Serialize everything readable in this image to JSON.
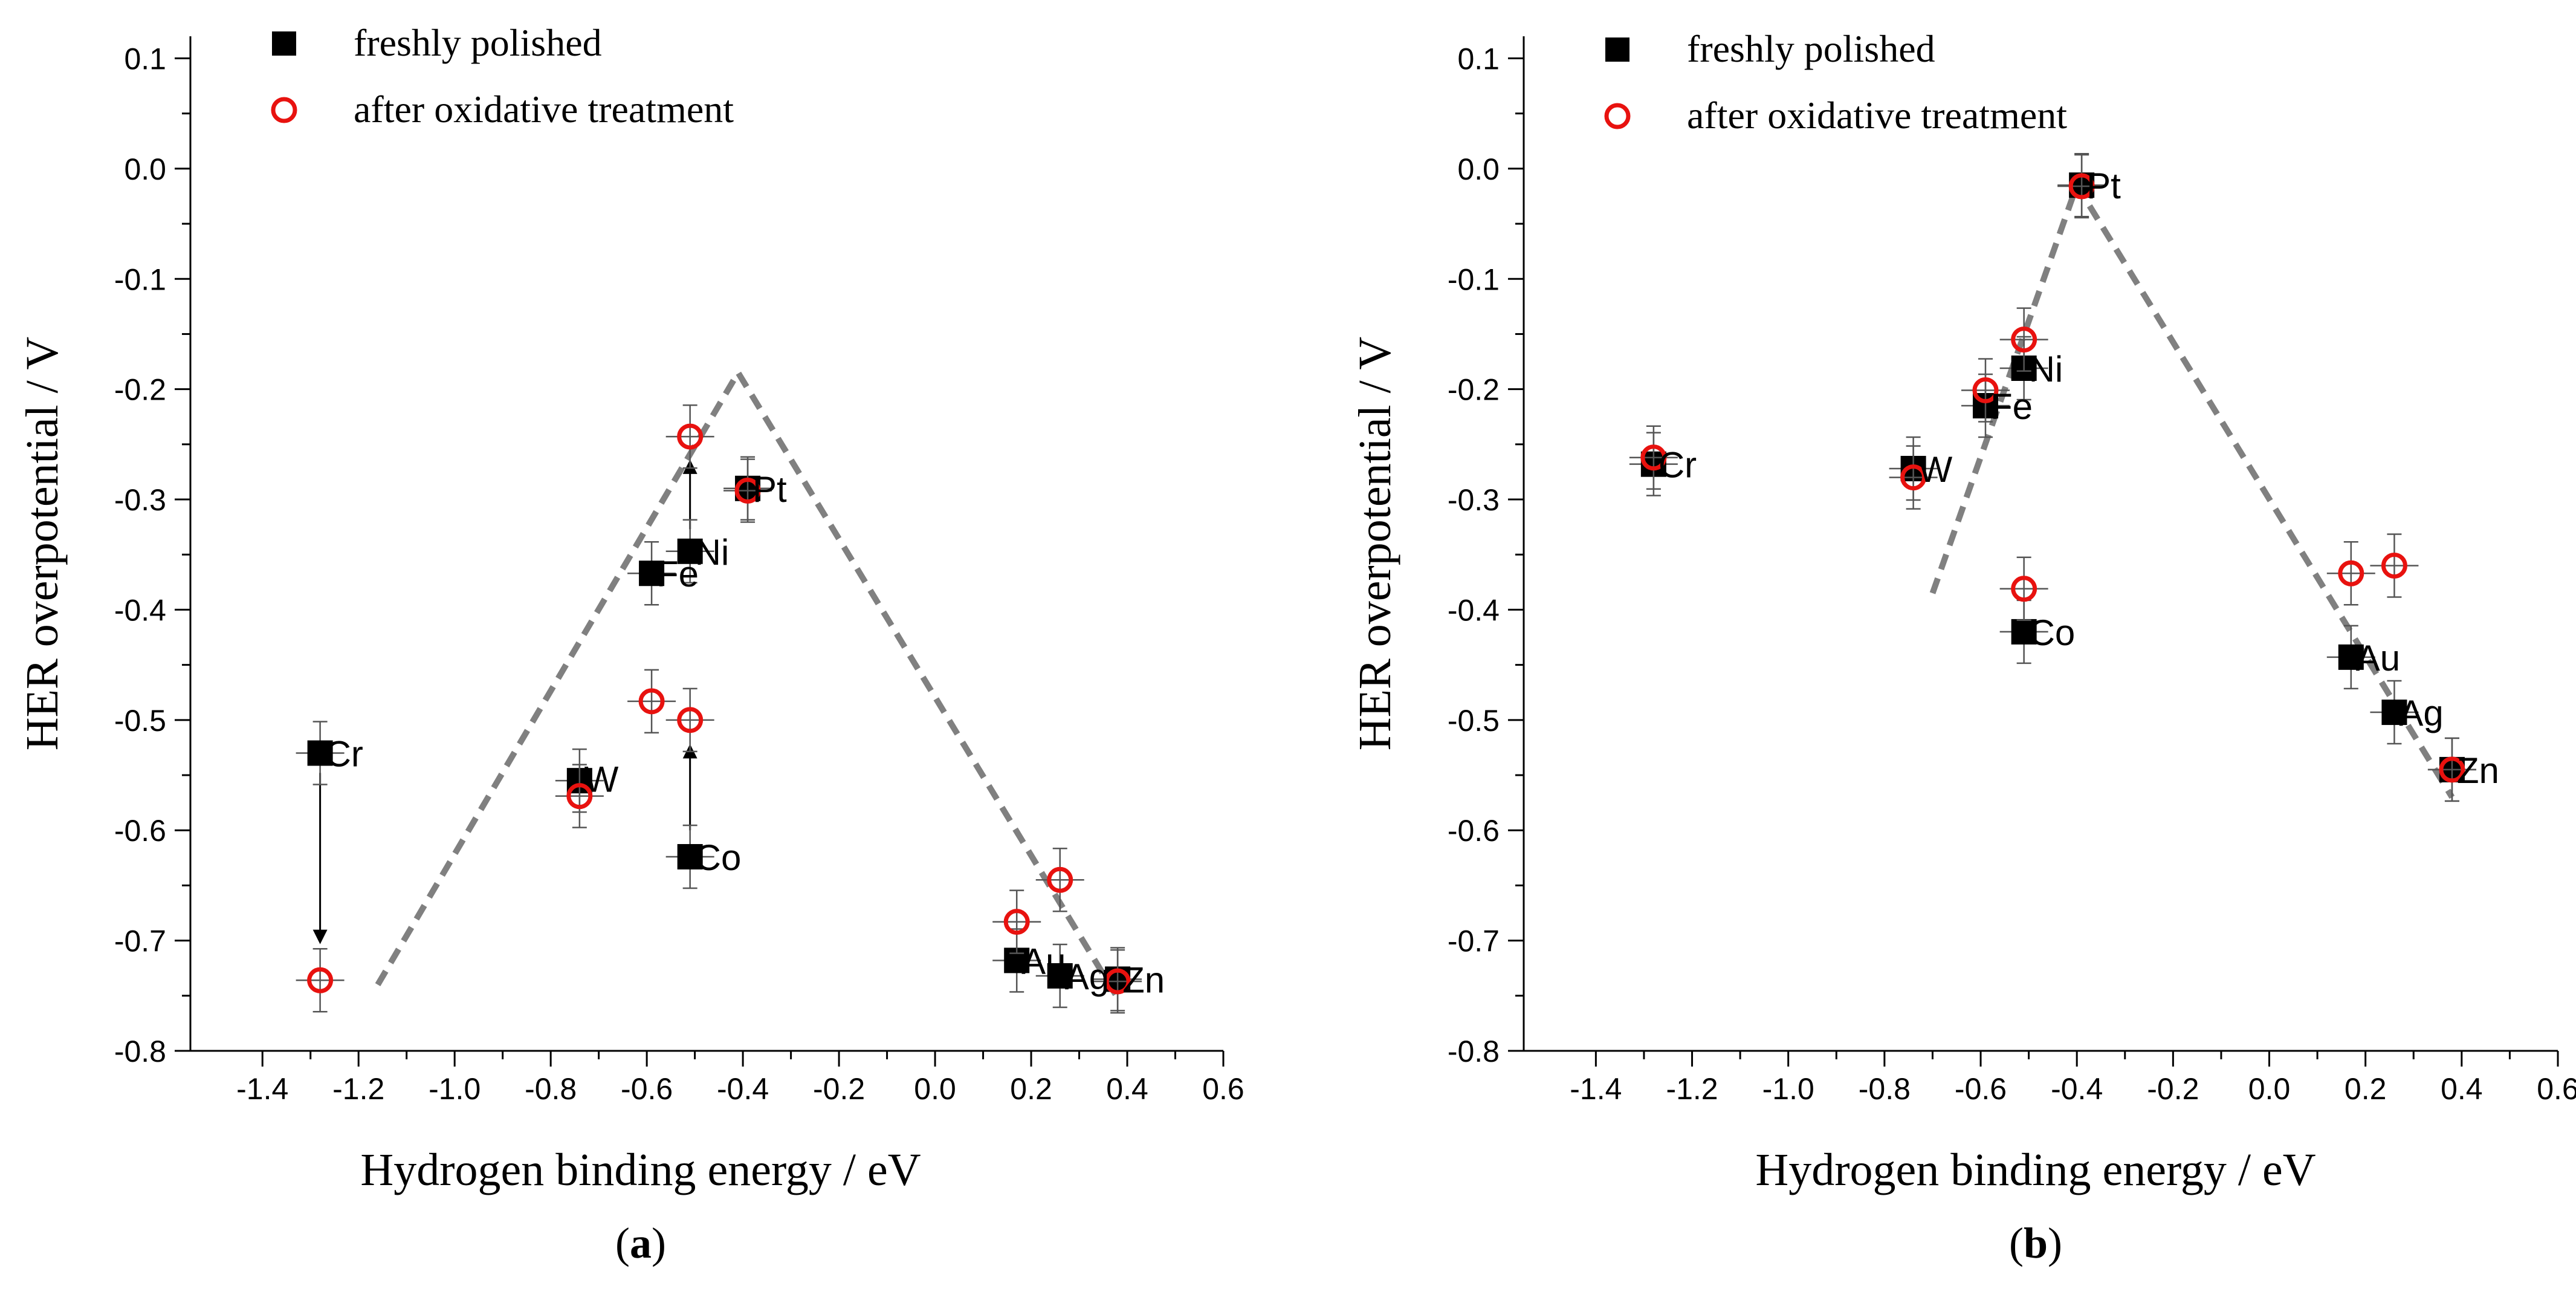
{
  "colors": {
    "fresh": "#000000",
    "oxidized": "#e8120f",
    "fit": "#808080",
    "errorbar": "#555555",
    "axis": "#000000"
  },
  "legend": {
    "fresh": "freshly polished",
    "oxidized": "after oxidative treatment"
  },
  "chart_data": [
    {
      "id": "a",
      "type": "scatter",
      "caption_letter": "a",
      "xlabel": "Hydrogen binding energy / eV",
      "ylabel": "HER overpotential / V",
      "xlim": [
        -1.55,
        0.6
      ],
      "ylim": [
        -0.8,
        0.12
      ],
      "xticks": [
        -1.4,
        -1.2,
        -1.0,
        -0.8,
        -0.6,
        -0.4,
        -0.2,
        0.0,
        0.2,
        0.4,
        0.6
      ],
      "xtick_labels": [
        "-1.4",
        "-1.2",
        "-1.0",
        "-0.8",
        "-0.6",
        "-0.4",
        "-0.2",
        "0.0",
        "0.2",
        "0.4",
        "0.6"
      ],
      "yticks": [
        -0.8,
        -0.7,
        -0.6,
        -0.5,
        -0.4,
        -0.3,
        -0.2,
        -0.1,
        0.0,
        0.1
      ],
      "ytick_labels": [
        "-0.8",
        "-0.7",
        "-0.6",
        "-0.5",
        "-0.4",
        "-0.3",
        "-0.2",
        "-0.1",
        "0.0",
        "0.1"
      ],
      "series": [
        {
          "name": "freshly polished",
          "key": "fresh",
          "points": [
            {
              "label": "Cr",
              "x": -1.28,
              "y": -0.53
            },
            {
              "label": "W",
              "x": -0.74,
              "y": -0.555
            },
            {
              "label": "Fe",
              "x": -0.59,
              "y": -0.367
            },
            {
              "label": "Ni",
              "x": -0.51,
              "y": -0.347
            },
            {
              "label": "Co",
              "x": -0.51,
              "y": -0.624
            },
            {
              "label": "Pt",
              "x": -0.39,
              "y": -0.29
            },
            {
              "label": "Au",
              "x": 0.17,
              "y": -0.718
            },
            {
              "label": "Ag",
              "x": 0.26,
              "y": -0.732
            },
            {
              "label": "Zn",
              "x": 0.38,
              "y": -0.735
            }
          ]
        },
        {
          "name": "after oxidative treatment",
          "key": "oxidized",
          "points": [
            {
              "label": "Cr",
              "x": -1.28,
              "y": -0.736
            },
            {
              "label": "W",
              "x": -0.74,
              "y": -0.569
            },
            {
              "label": "Fe",
              "x": -0.59,
              "y": -0.483
            },
            {
              "label": "Ni",
              "x": -0.51,
              "y": -0.243
            },
            {
              "label": "Co",
              "x": -0.51,
              "y": -0.5
            },
            {
              "label": "Pt",
              "x": -0.39,
              "y": -0.292
            },
            {
              "label": "Au",
              "x": 0.17,
              "y": -0.683
            },
            {
              "label": "Ag",
              "x": 0.26,
              "y": -0.645
            },
            {
              "label": "Zn",
              "x": 0.38,
              "y": -0.737
            }
          ]
        }
      ],
      "fit_line": [
        {
          "x": -1.16,
          "y": -0.74
        },
        {
          "x": -0.41,
          "y": -0.185
        },
        {
          "x": 0.38,
          "y": -0.752
        }
      ],
      "arrows": [
        {
          "from": {
            "x": -1.28,
            "y": -0.548
          },
          "to": {
            "x": -1.28,
            "y": -0.7
          }
        },
        {
          "from": {
            "x": -0.51,
            "y": -0.327
          },
          "to": {
            "x": -0.51,
            "y": -0.267
          }
        },
        {
          "from": {
            "x": -0.51,
            "y": -0.6
          },
          "to": {
            "x": -0.51,
            "y": -0.525
          }
        }
      ],
      "element_labels": [
        {
          "text": "Cr",
          "x": -1.27,
          "y": -0.53
        },
        {
          "text": "W",
          "x": -0.73,
          "y": -0.553
        },
        {
          "text": "Fe",
          "x": -0.58,
          "y": -0.367
        },
        {
          "text": "Ni",
          "x": -0.5,
          "y": -0.347
        },
        {
          "text": "Co",
          "x": -0.5,
          "y": -0.624
        },
        {
          "text": "Pt",
          "x": -0.38,
          "y": -0.29
        },
        {
          "text": "Au",
          "x": 0.18,
          "y": -0.718
        },
        {
          "text": "Ag",
          "x": 0.27,
          "y": -0.732
        },
        {
          "text": "Zn",
          "x": 0.39,
          "y": -0.735
        }
      ]
    },
    {
      "id": "b",
      "type": "scatter",
      "caption_letter": "b",
      "xlabel": "Hydrogen binding energy / eV",
      "ylabel": "HER overpotential / V",
      "xlim": [
        -1.55,
        0.6
      ],
      "ylim": [
        -0.8,
        0.12
      ],
      "xticks": [
        -1.4,
        -1.2,
        -1.0,
        -0.8,
        -0.6,
        -0.4,
        -0.2,
        0.0,
        0.2,
        0.4,
        0.6
      ],
      "xtick_labels": [
        "-1.4",
        "-1.2",
        "-1.0",
        "-0.8",
        "-0.6",
        "-0.4",
        "-0.2",
        "0.0",
        "0.2",
        "0.4",
        "0.6"
      ],
      "yticks": [
        -0.8,
        -0.7,
        -0.6,
        -0.5,
        -0.4,
        -0.3,
        -0.2,
        -0.1,
        0.0,
        0.1
      ],
      "ytick_labels": [
        "-0.8",
        "-0.7",
        "-0.6",
        "-0.5",
        "-0.4",
        "-0.3",
        "-0.2",
        "-0.1",
        "0.0",
        "0.1"
      ],
      "series": [
        {
          "name": "freshly polished",
          "key": "fresh",
          "points": [
            {
              "label": "Cr",
              "x": -1.28,
              "y": -0.268
            },
            {
              "label": "W",
              "x": -0.74,
              "y": -0.272
            },
            {
              "label": "Fe",
              "x": -0.59,
              "y": -0.215
            },
            {
              "label": "Ni",
              "x": -0.51,
              "y": -0.181
            },
            {
              "label": "Co",
              "x": -0.51,
              "y": -0.42
            },
            {
              "label": "Pt",
              "x": -0.39,
              "y": -0.015
            },
            {
              "label": "Au",
              "x": 0.17,
              "y": -0.443
            },
            {
              "label": "Ag",
              "x": 0.26,
              "y": -0.493
            },
            {
              "label": "Zn",
              "x": 0.38,
              "y": -0.545
            }
          ]
        },
        {
          "name": "after oxidative treatment",
          "key": "oxidized",
          "points": [
            {
              "label": "Cr",
              "x": -1.28,
              "y": -0.262
            },
            {
              "label": "W",
              "x": -0.74,
              "y": -0.28
            },
            {
              "label": "Fe",
              "x": -0.59,
              "y": -0.201
            },
            {
              "label": "Ni",
              "x": -0.51,
              "y": -0.155
            },
            {
              "label": "Co",
              "x": -0.51,
              "y": -0.381
            },
            {
              "label": "Pt",
              "x": -0.39,
              "y": -0.016
            },
            {
              "label": "Au",
              "x": 0.17,
              "y": -0.367
            },
            {
              "label": "Ag",
              "x": 0.26,
              "y": -0.36
            },
            {
              "label": "Zn",
              "x": 0.38,
              "y": -0.545
            }
          ]
        }
      ],
      "fit_line": [
        {
          "x": -0.7,
          "y": -0.385
        },
        {
          "x": -0.4,
          "y": -0.015
        },
        {
          "x": 0.38,
          "y": -0.57
        }
      ],
      "arrows": [],
      "element_labels": [
        {
          "text": "Cr",
          "x": -1.27,
          "y": -0.268
        },
        {
          "text": "W",
          "x": -0.73,
          "y": -0.272
        },
        {
          "text": "Fe",
          "x": -0.58,
          "y": -0.215
        },
        {
          "text": "Ni",
          "x": -0.5,
          "y": -0.181
        },
        {
          "text": "Co",
          "x": -0.5,
          "y": -0.42
        },
        {
          "text": "Pt",
          "x": -0.38,
          "y": -0.015
        },
        {
          "text": "Au",
          "x": 0.18,
          "y": -0.443
        },
        {
          "text": "Ag",
          "x": 0.27,
          "y": -0.493
        },
        {
          "text": "Zn",
          "x": 0.39,
          "y": -0.545
        }
      ]
    }
  ]
}
